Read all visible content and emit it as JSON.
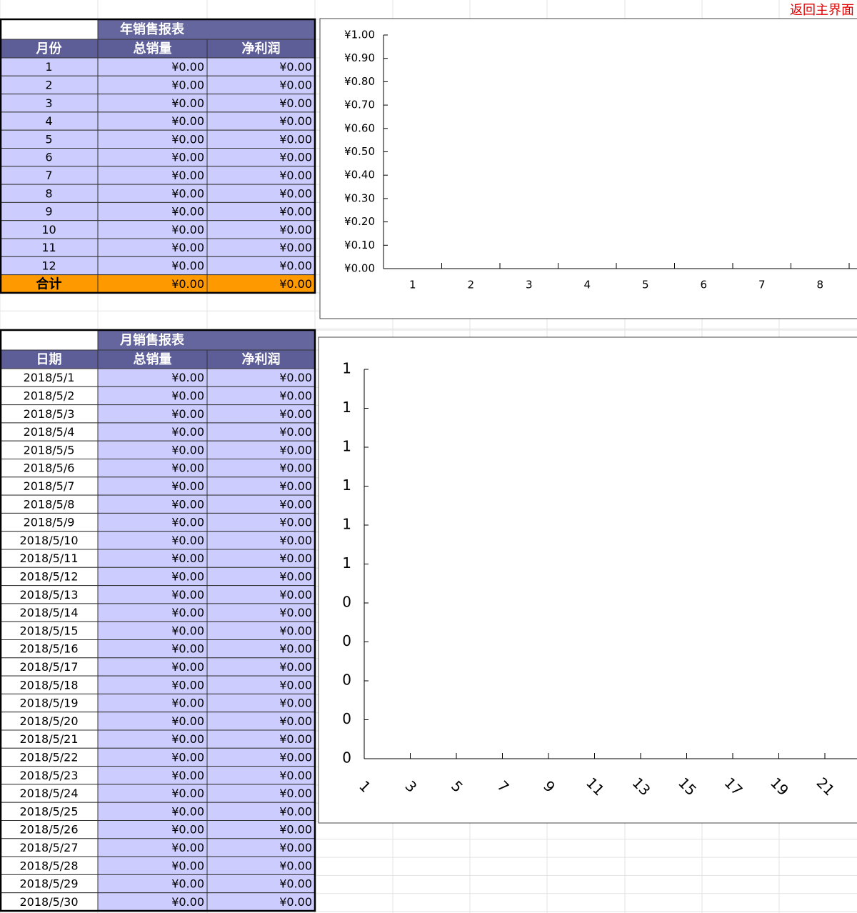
{
  "return_button": "返回主界面",
  "year_table": {
    "title": "年销售报表",
    "headers": [
      "月份",
      "总销量",
      "净利润"
    ],
    "rows": [
      [
        "1",
        "¥0.00",
        "¥0.00"
      ],
      [
        "2",
        "¥0.00",
        "¥0.00"
      ],
      [
        "3",
        "¥0.00",
        "¥0.00"
      ],
      [
        "4",
        "¥0.00",
        "¥0.00"
      ],
      [
        "5",
        "¥0.00",
        "¥0.00"
      ],
      [
        "6",
        "¥0.00",
        "¥0.00"
      ],
      [
        "7",
        "¥0.00",
        "¥0.00"
      ],
      [
        "8",
        "¥0.00",
        "¥0.00"
      ],
      [
        "9",
        "¥0.00",
        "¥0.00"
      ],
      [
        "10",
        "¥0.00",
        "¥0.00"
      ],
      [
        "11",
        "¥0.00",
        "¥0.00"
      ],
      [
        "12",
        "¥0.00",
        "¥0.00"
      ]
    ],
    "total": [
      "合计",
      "¥0.00",
      "¥0.00"
    ]
  },
  "month_table": {
    "title": "月销售报表",
    "headers": [
      "日期",
      "总销量",
      "净利润"
    ],
    "rows": [
      [
        "2018/5/1",
        "¥0.00",
        "¥0.00"
      ],
      [
        "2018/5/2",
        "¥0.00",
        "¥0.00"
      ],
      [
        "2018/5/3",
        "¥0.00",
        "¥0.00"
      ],
      [
        "2018/5/4",
        "¥0.00",
        "¥0.00"
      ],
      [
        "2018/5/5",
        "¥0.00",
        "¥0.00"
      ],
      [
        "2018/5/6",
        "¥0.00",
        "¥0.00"
      ],
      [
        "2018/5/7",
        "¥0.00",
        "¥0.00"
      ],
      [
        "2018/5/8",
        "¥0.00",
        "¥0.00"
      ],
      [
        "2018/5/9",
        "¥0.00",
        "¥0.00"
      ],
      [
        "2018/5/10",
        "¥0.00",
        "¥0.00"
      ],
      [
        "2018/5/11",
        "¥0.00",
        "¥0.00"
      ],
      [
        "2018/5/12",
        "¥0.00",
        "¥0.00"
      ],
      [
        "2018/5/13",
        "¥0.00",
        "¥0.00"
      ],
      [
        "2018/5/14",
        "¥0.00",
        "¥0.00"
      ],
      [
        "2018/5/15",
        "¥0.00",
        "¥0.00"
      ],
      [
        "2018/5/16",
        "¥0.00",
        "¥0.00"
      ],
      [
        "2018/5/17",
        "¥0.00",
        "¥0.00"
      ],
      [
        "2018/5/18",
        "¥0.00",
        "¥0.00"
      ],
      [
        "2018/5/19",
        "¥0.00",
        "¥0.00"
      ],
      [
        "2018/5/20",
        "¥0.00",
        "¥0.00"
      ],
      [
        "2018/5/21",
        "¥0.00",
        "¥0.00"
      ],
      [
        "2018/5/22",
        "¥0.00",
        "¥0.00"
      ],
      [
        "2018/5/23",
        "¥0.00",
        "¥0.00"
      ],
      [
        "2018/5/24",
        "¥0.00",
        "¥0.00"
      ],
      [
        "2018/5/25",
        "¥0.00",
        "¥0.00"
      ],
      [
        "2018/5/26",
        "¥0.00",
        "¥0.00"
      ],
      [
        "2018/5/27",
        "¥0.00",
        "¥0.00"
      ],
      [
        "2018/5/28",
        "¥0.00",
        "¥0.00"
      ],
      [
        "2018/5/29",
        "¥0.00",
        "¥0.00"
      ],
      [
        "2018/5/30",
        "¥0.00",
        "¥0.00"
      ]
    ]
  },
  "charts": [
    {
      "ylim": [
        0,
        1
      ],
      "yticks": [
        {
          "value": 0,
          "label": "¥0.00"
        },
        {
          "value": 0.1,
          "label": "¥0.10"
        },
        {
          "value": 0.2,
          "label": "¥0.20"
        },
        {
          "value": 0.3,
          "label": "¥0.30"
        },
        {
          "value": 0.4,
          "label": "¥0.40"
        },
        {
          "value": 0.5,
          "label": "¥0.50"
        },
        {
          "value": 0.6,
          "label": "¥0.60"
        },
        {
          "value": 0.7,
          "label": "¥0.70"
        },
        {
          "value": 0.8,
          "label": "¥0.80"
        },
        {
          "value": 0.9,
          "label": "¥0.90"
        },
        {
          "value": 1,
          "label": "¥1.00"
        }
      ],
      "categories": [
        "1",
        "2",
        "3",
        "4",
        "5",
        "6",
        "7",
        "8"
      ]
    },
    {
      "ylim": [
        0,
        1
      ],
      "yticks": [
        {
          "value": 0,
          "label": "0"
        },
        {
          "value": 0.1,
          "label": "0"
        },
        {
          "value": 0.2,
          "label": "0"
        },
        {
          "value": 0.3,
          "label": "0"
        },
        {
          "value": 0.4,
          "label": "0"
        },
        {
          "value": 0.5,
          "label": "1"
        },
        {
          "value": 0.6,
          "label": "1"
        },
        {
          "value": 0.7,
          "label": "1"
        },
        {
          "value": 0.8,
          "label": "1"
        },
        {
          "value": 0.9,
          "label": "1"
        },
        {
          "value": 1,
          "label": "1"
        }
      ],
      "categories": [
        "1",
        "3",
        "5",
        "7",
        "9",
        "11",
        "13",
        "15",
        "17",
        "19",
        "21"
      ]
    }
  ]
}
